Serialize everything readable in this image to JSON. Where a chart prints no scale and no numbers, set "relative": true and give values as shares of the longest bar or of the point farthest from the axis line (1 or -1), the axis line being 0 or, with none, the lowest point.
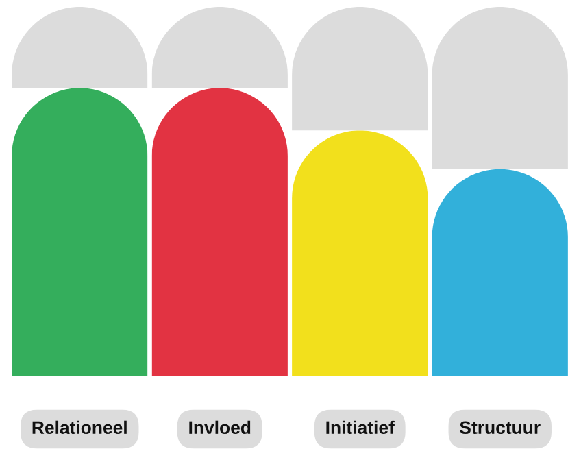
{
  "chart_data": {
    "type": "bar",
    "relative": true,
    "stacked": true,
    "categories": [
      "Relationeel",
      "Invloed",
      "Initiatief",
      "Structuur"
    ],
    "series": [
      {
        "colors": [
          "#34ae5c",
          "#e23342",
          "#f2e01c",
          "#32b0da"
        ],
        "values": [
          0.78,
          0.78,
          0.665,
          0.56
        ]
      },
      {
        "color": "#dcdcdc",
        "values": [
          0.22,
          0.22,
          0.335,
          0.44
        ]
      }
    ]
  }
}
